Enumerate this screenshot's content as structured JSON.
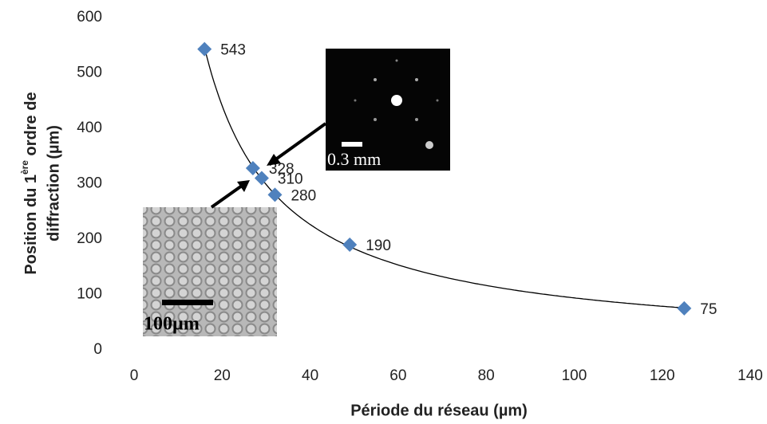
{
  "chart_data": {
    "type": "scatter",
    "xlabel": "Période du réseau (µm)",
    "ylabel": {
      "line1": "Position du 1",
      "sup": "ère",
      "line1_end": " ordre de",
      "line2": "diffraction (µm)"
    },
    "x": [
      16,
      27,
      29,
      32,
      49,
      125
    ],
    "values": [
      543,
      328,
      310,
      280,
      190,
      75
    ],
    "color": "#4f81bd",
    "marker": "diamond",
    "trendline": "power",
    "xlim": [
      0,
      140
    ],
    "xticks": [
      0,
      20,
      40,
      60,
      80,
      100,
      120,
      140
    ],
    "ylim": [
      0,
      600
    ],
    "yticks": [
      0,
      100,
      200,
      300,
      400,
      500,
      600
    ],
    "grid": false,
    "insets": {
      "diffraction_scale": "0.3 mm",
      "structure_scale": "100µm"
    }
  }
}
